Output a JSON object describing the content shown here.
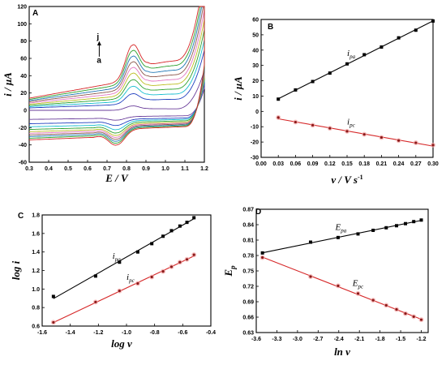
{
  "chart_data": [
    {
      "panel": "A",
      "type": "line",
      "xlabel": "E / V",
      "ylabel": "i / μA",
      "xlim": [
        0.3,
        1.2
      ],
      "ylim": [
        -60,
        120
      ],
      "xticks": [
        "0.3",
        "0.4",
        "0.5",
        "0.6",
        "0.7",
        "0.8",
        "0.9",
        "1.0",
        "1.1",
        "1.2"
      ],
      "yticks": [
        "-60",
        "-40",
        "-20",
        "0",
        "20",
        "40",
        "60",
        "80",
        "100",
        "120"
      ],
      "annotation_top": "j",
      "annotation_bottom": "a",
      "series": [
        {
          "color": "#6a3d9a",
          "ipa": 5,
          "ipc": -4,
          "ic": 0,
          "ia": -12
        },
        {
          "color": "#1f3fbf",
          "ipa": 12,
          "ipc": -7,
          "ic": 8,
          "ia": -17
        },
        {
          "color": "#17becf",
          "ipa": 17,
          "ipc": -10,
          "ic": 12,
          "ia": -20
        },
        {
          "color": "#2ca02c",
          "ipa": 21,
          "ipc": -12,
          "ic": 16,
          "ia": -23
        },
        {
          "color": "#bcbd22",
          "ipa": 25,
          "ipc": -13,
          "ic": 20,
          "ia": -26
        },
        {
          "color": "#e377c2",
          "ipa": 28,
          "ipc": -14,
          "ic": 24,
          "ia": -28
        },
        {
          "color": "#8c564b",
          "ipa": 31,
          "ipc": -15,
          "ic": 28,
          "ia": -30
        },
        {
          "color": "#1f77b4",
          "ipa": 34,
          "ipc": -16,
          "ic": 32,
          "ia": -32
        },
        {
          "color": "#2ca02c",
          "ipa": 37,
          "ipc": -17,
          "ic": 36,
          "ia": -34
        },
        {
          "color": "#d62728",
          "ipa": 40,
          "ipc": -18,
          "ic": 40,
          "ia": -36
        }
      ]
    },
    {
      "panel": "B",
      "type": "scatter",
      "xlabel": "v / V s",
      "xlabel_sup": "-1",
      "ylabel": "i / μA",
      "xlim": [
        0.0,
        0.3
      ],
      "ylim": [
        -30,
        60
      ],
      "xticks": [
        "0.00",
        "0.03",
        "0.06",
        "0.09",
        "0.12",
        "0.15",
        "0.18",
        "0.21",
        "0.24",
        "0.27",
        "0.30"
      ],
      "yticks": [
        "-30",
        "-20",
        "-10",
        "0",
        "10",
        "20",
        "30",
        "40",
        "50",
        "60"
      ],
      "series": [
        {
          "name": "i",
          "sub": "pa",
          "color": "#000000",
          "marker": "square",
          "x": [
            0.03,
            0.06,
            0.09,
            0.12,
            0.15,
            0.18,
            0.21,
            0.24,
            0.27,
            0.3
          ],
          "y": [
            8,
            14,
            19.5,
            25,
            31,
            37,
            42,
            48,
            53,
            59
          ]
        },
        {
          "name": "i",
          "sub": "pc",
          "color": "#d62728",
          "marker": "circle",
          "x": [
            0.03,
            0.06,
            0.09,
            0.12,
            0.15,
            0.18,
            0.21,
            0.24,
            0.27,
            0.3
          ],
          "y": [
            -4,
            -7,
            -9,
            -11,
            -13,
            -15,
            -17,
            -19,
            -20.5,
            -22
          ]
        }
      ]
    },
    {
      "panel": "C",
      "type": "scatter",
      "xlabel": "log v",
      "ylabel": "log i",
      "xlim": [
        -1.6,
        -0.4
      ],
      "ylim": [
        0.6,
        1.8
      ],
      "xticks": [
        "-1.6",
        "-1.4",
        "-1.2",
        "-1.0",
        "-0.8",
        "-0.6",
        "-0.4"
      ],
      "yticks": [
        "0.6",
        "0.8",
        "1.0",
        "1.2",
        "1.4",
        "1.6",
        "1.8"
      ],
      "series": [
        {
          "name": "i",
          "sub": "pa",
          "color": "#000000",
          "marker": "square",
          "x": [
            -1.52,
            -1.22,
            -1.05,
            -0.92,
            -0.82,
            -0.74,
            -0.68,
            -0.62,
            -0.57,
            -0.52
          ],
          "y": [
            0.92,
            1.14,
            1.29,
            1.4,
            1.49,
            1.57,
            1.63,
            1.68,
            1.72,
            1.77
          ]
        },
        {
          "name": "i",
          "sub": "pc",
          "color": "#d62728",
          "marker": "circle",
          "x": [
            -1.52,
            -1.22,
            -1.05,
            -0.92,
            -0.82,
            -0.74,
            -0.68,
            -0.62,
            -0.57,
            -0.52
          ],
          "y": [
            0.64,
            0.86,
            0.98,
            1.06,
            1.13,
            1.19,
            1.24,
            1.29,
            1.32,
            1.37
          ]
        }
      ]
    },
    {
      "panel": "D",
      "type": "scatter",
      "xlabel": "ln v",
      "ylabel": "E",
      "ylabel_sub": "p",
      "xlim": [
        -3.6,
        -1.1
      ],
      "ylim": [
        0.63,
        0.87
      ],
      "xticks": [
        "-3.6",
        "-3.3",
        "-3.0",
        "-2.7",
        "-2.4",
        "-2.1",
        "-1.8",
        "-1.5",
        "-1.2"
      ],
      "yticks": [
        "0.63",
        "0.66",
        "0.69",
        "0.72",
        "0.75",
        "0.78",
        "0.81",
        "0.84",
        "0.87"
      ],
      "series": [
        {
          "name": "E",
          "sub": "pa",
          "color": "#000000",
          "marker": "square",
          "x": [
            -3.51,
            -2.81,
            -2.41,
            -2.12,
            -1.9,
            -1.71,
            -1.56,
            -1.43,
            -1.31,
            -1.2
          ],
          "y": [
            0.785,
            0.806,
            0.815,
            0.822,
            0.829,
            0.834,
            0.838,
            0.842,
            0.846,
            0.849
          ]
        },
        {
          "name": "E",
          "sub": "pc",
          "color": "#d62728",
          "marker": "circle",
          "x": [
            -3.51,
            -2.81,
            -2.41,
            -2.12,
            -1.9,
            -1.71,
            -1.56,
            -1.43,
            -1.31,
            -1.2
          ],
          "y": [
            0.776,
            0.739,
            0.721,
            0.706,
            0.693,
            0.683,
            0.675,
            0.667,
            0.661,
            0.655
          ]
        }
      ]
    }
  ]
}
